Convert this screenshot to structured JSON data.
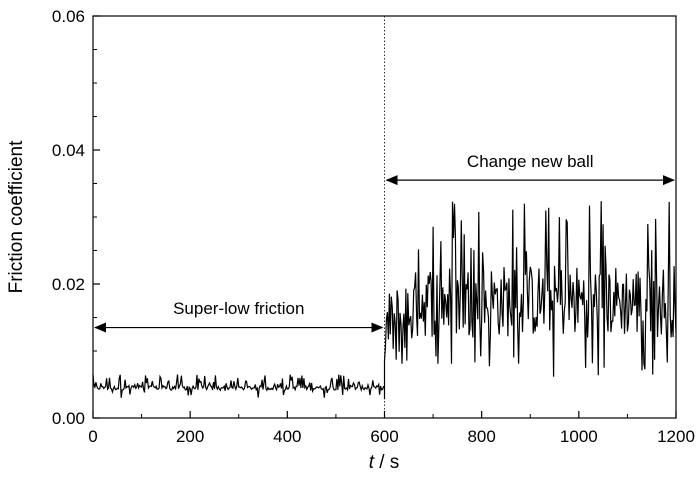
{
  "chart_data": {
    "type": "line",
    "title": "",
    "xlabel_italic": "t",
    "xlabel_unit": " / s",
    "ylabel": "Friction coefficient",
    "xlim": [
      0,
      1200
    ],
    "ylim": [
      0,
      0.06
    ],
    "x_ticks": [
      0,
      200,
      400,
      600,
      800,
      1000,
      1200
    ],
    "x_tick_labels": [
      "0",
      "200",
      "400",
      "600",
      "800",
      "1000",
      "1200"
    ],
    "y_ticks": [
      0,
      0.02,
      0.04,
      0.06
    ],
    "y_tick_labels": [
      "0.00",
      "0.02",
      "0.04",
      "0.06"
    ],
    "grid": false,
    "divider_x": 600,
    "series": [
      {
        "segments": [
          {
            "x_start": 0,
            "x_end": 600,
            "baseline": 0.0045,
            "low": 0.003,
            "high": 0.0065,
            "pattern": "super-low noisy band"
          },
          {
            "x_start": 600,
            "x_end": 1200,
            "baseline": 0.015,
            "low": 0.006,
            "high": 0.033,
            "pattern": "higher noisy band after ball change"
          }
        ],
        "color": "#000000"
      }
    ],
    "annotations": [
      {
        "text": "Super-low friction",
        "x_from": 0,
        "x_to": 600,
        "y": 0.0135,
        "label_y": 0.0155
      },
      {
        "text": "Change new ball",
        "x_from": 600,
        "x_to": 1200,
        "y": 0.0355,
        "label_y": 0.0375
      }
    ]
  }
}
